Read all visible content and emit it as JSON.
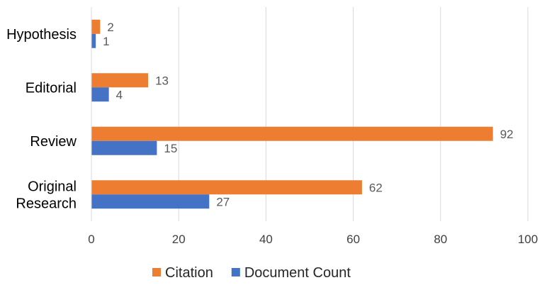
{
  "chart_data": {
    "type": "bar",
    "orientation": "horizontal",
    "categories": [
      "Hypothesis",
      "Editorial",
      "Review",
      "Original Research"
    ],
    "category_lines": [
      [
        "Hypothesis"
      ],
      [
        "Editorial"
      ],
      [
        "Review"
      ],
      [
        "Original",
        "Research"
      ]
    ],
    "series": [
      {
        "name": "Citation",
        "color": "#ED7D31",
        "values": [
          2,
          13,
          92,
          62
        ]
      },
      {
        "name": "Document Count",
        "color": "#4472C4",
        "values": [
          1,
          4,
          15,
          27
        ]
      }
    ],
    "xlim": [
      0,
      100
    ],
    "x_ticks": [
      "0",
      "20",
      "40",
      "60",
      "80",
      "100"
    ],
    "grid": "vertical",
    "legend": "bottom",
    "data_labels": true,
    "title": "",
    "xlabel": "",
    "ylabel": ""
  }
}
